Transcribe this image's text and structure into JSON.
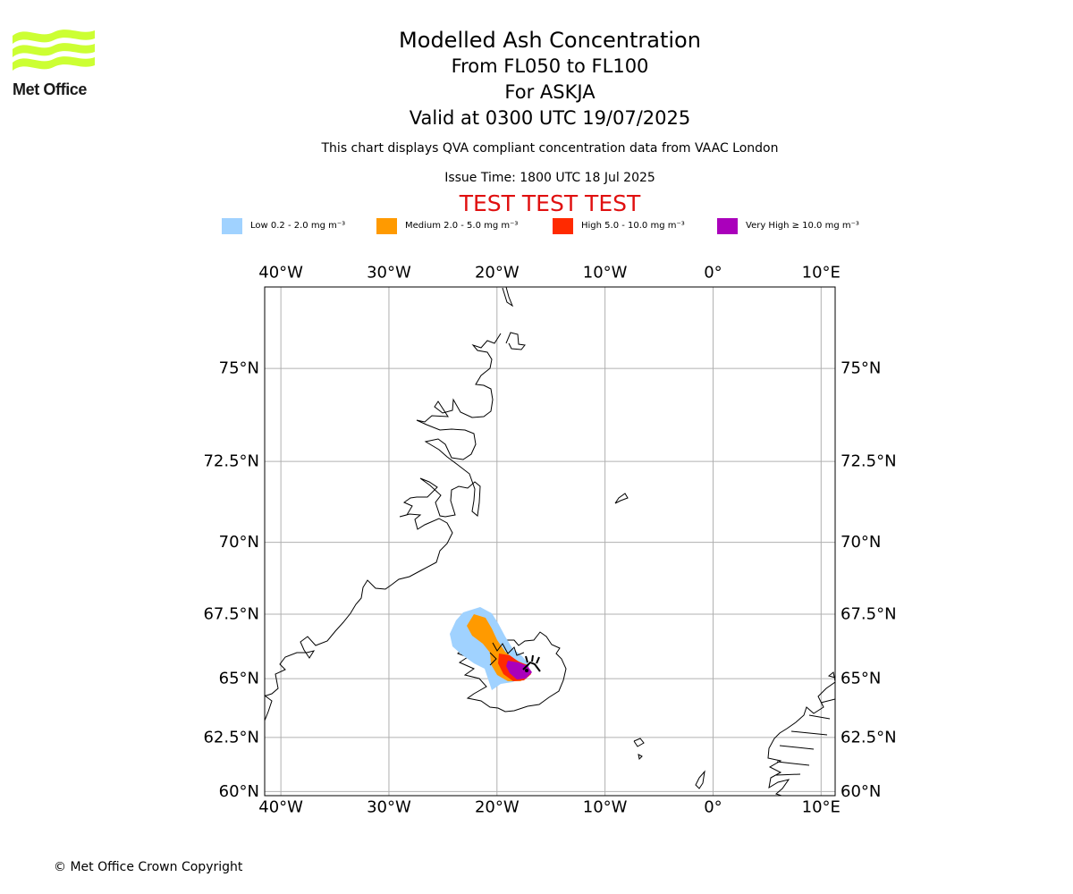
{
  "header": {
    "title": "Modelled Ash Concentration",
    "levels": "From FL050 to FL100",
    "volcano": "For ASKJA",
    "valid": "Valid at 0300 UTC 19/07/2025",
    "description": "This chart displays QVA compliant concentration data from VAAC London",
    "issue_time": "Issue Time: 1800 UTC 18 Jul 2025",
    "test_banner": "TEST TEST TEST"
  },
  "logo": {
    "text": "Met Office",
    "color": "#ccff33"
  },
  "legend": [
    {
      "label": "Low 0.2 - 2.0 mg m⁻³",
      "color": "#a0d2ff"
    },
    {
      "label": "Medium 2.0 - 5.0 mg m⁻³",
      "color": "#ff9a00"
    },
    {
      "label": "High 5.0 - 10.0 mg m⁻³",
      "color": "#ff2a00"
    },
    {
      "label": "Very High  ≥  10.0 mg m⁻³",
      "color": "#aa00bb"
    }
  ],
  "map": {
    "lon_range": [
      -41.5,
      11.3
    ],
    "lat_range": [
      59.8,
      76.9
    ],
    "lon_ticks": [
      {
        "value": -40,
        "label": "40°W"
      },
      {
        "value": -30,
        "label": "30°W"
      },
      {
        "value": -20,
        "label": "20°W"
      },
      {
        "value": -10,
        "label": "10°W"
      },
      {
        "value": 0,
        "label": "0°"
      },
      {
        "value": 10,
        "label": "10°E"
      }
    ],
    "lat_ticks": [
      {
        "value": 75,
        "label": "75°N"
      },
      {
        "value": 72.5,
        "label": "72.5°N"
      },
      {
        "value": 70,
        "label": "70°N"
      },
      {
        "value": 67.5,
        "label": "67.5°N"
      },
      {
        "value": 65,
        "label": "65°N"
      },
      {
        "value": 62.5,
        "label": "62.5°N"
      },
      {
        "value": 60,
        "label": "60°N"
      }
    ],
    "volcano_marker": {
      "lon": -16.8,
      "lat": 65.03
    }
  },
  "footer": {
    "copyright": "© Met Office Crown Copyright"
  }
}
